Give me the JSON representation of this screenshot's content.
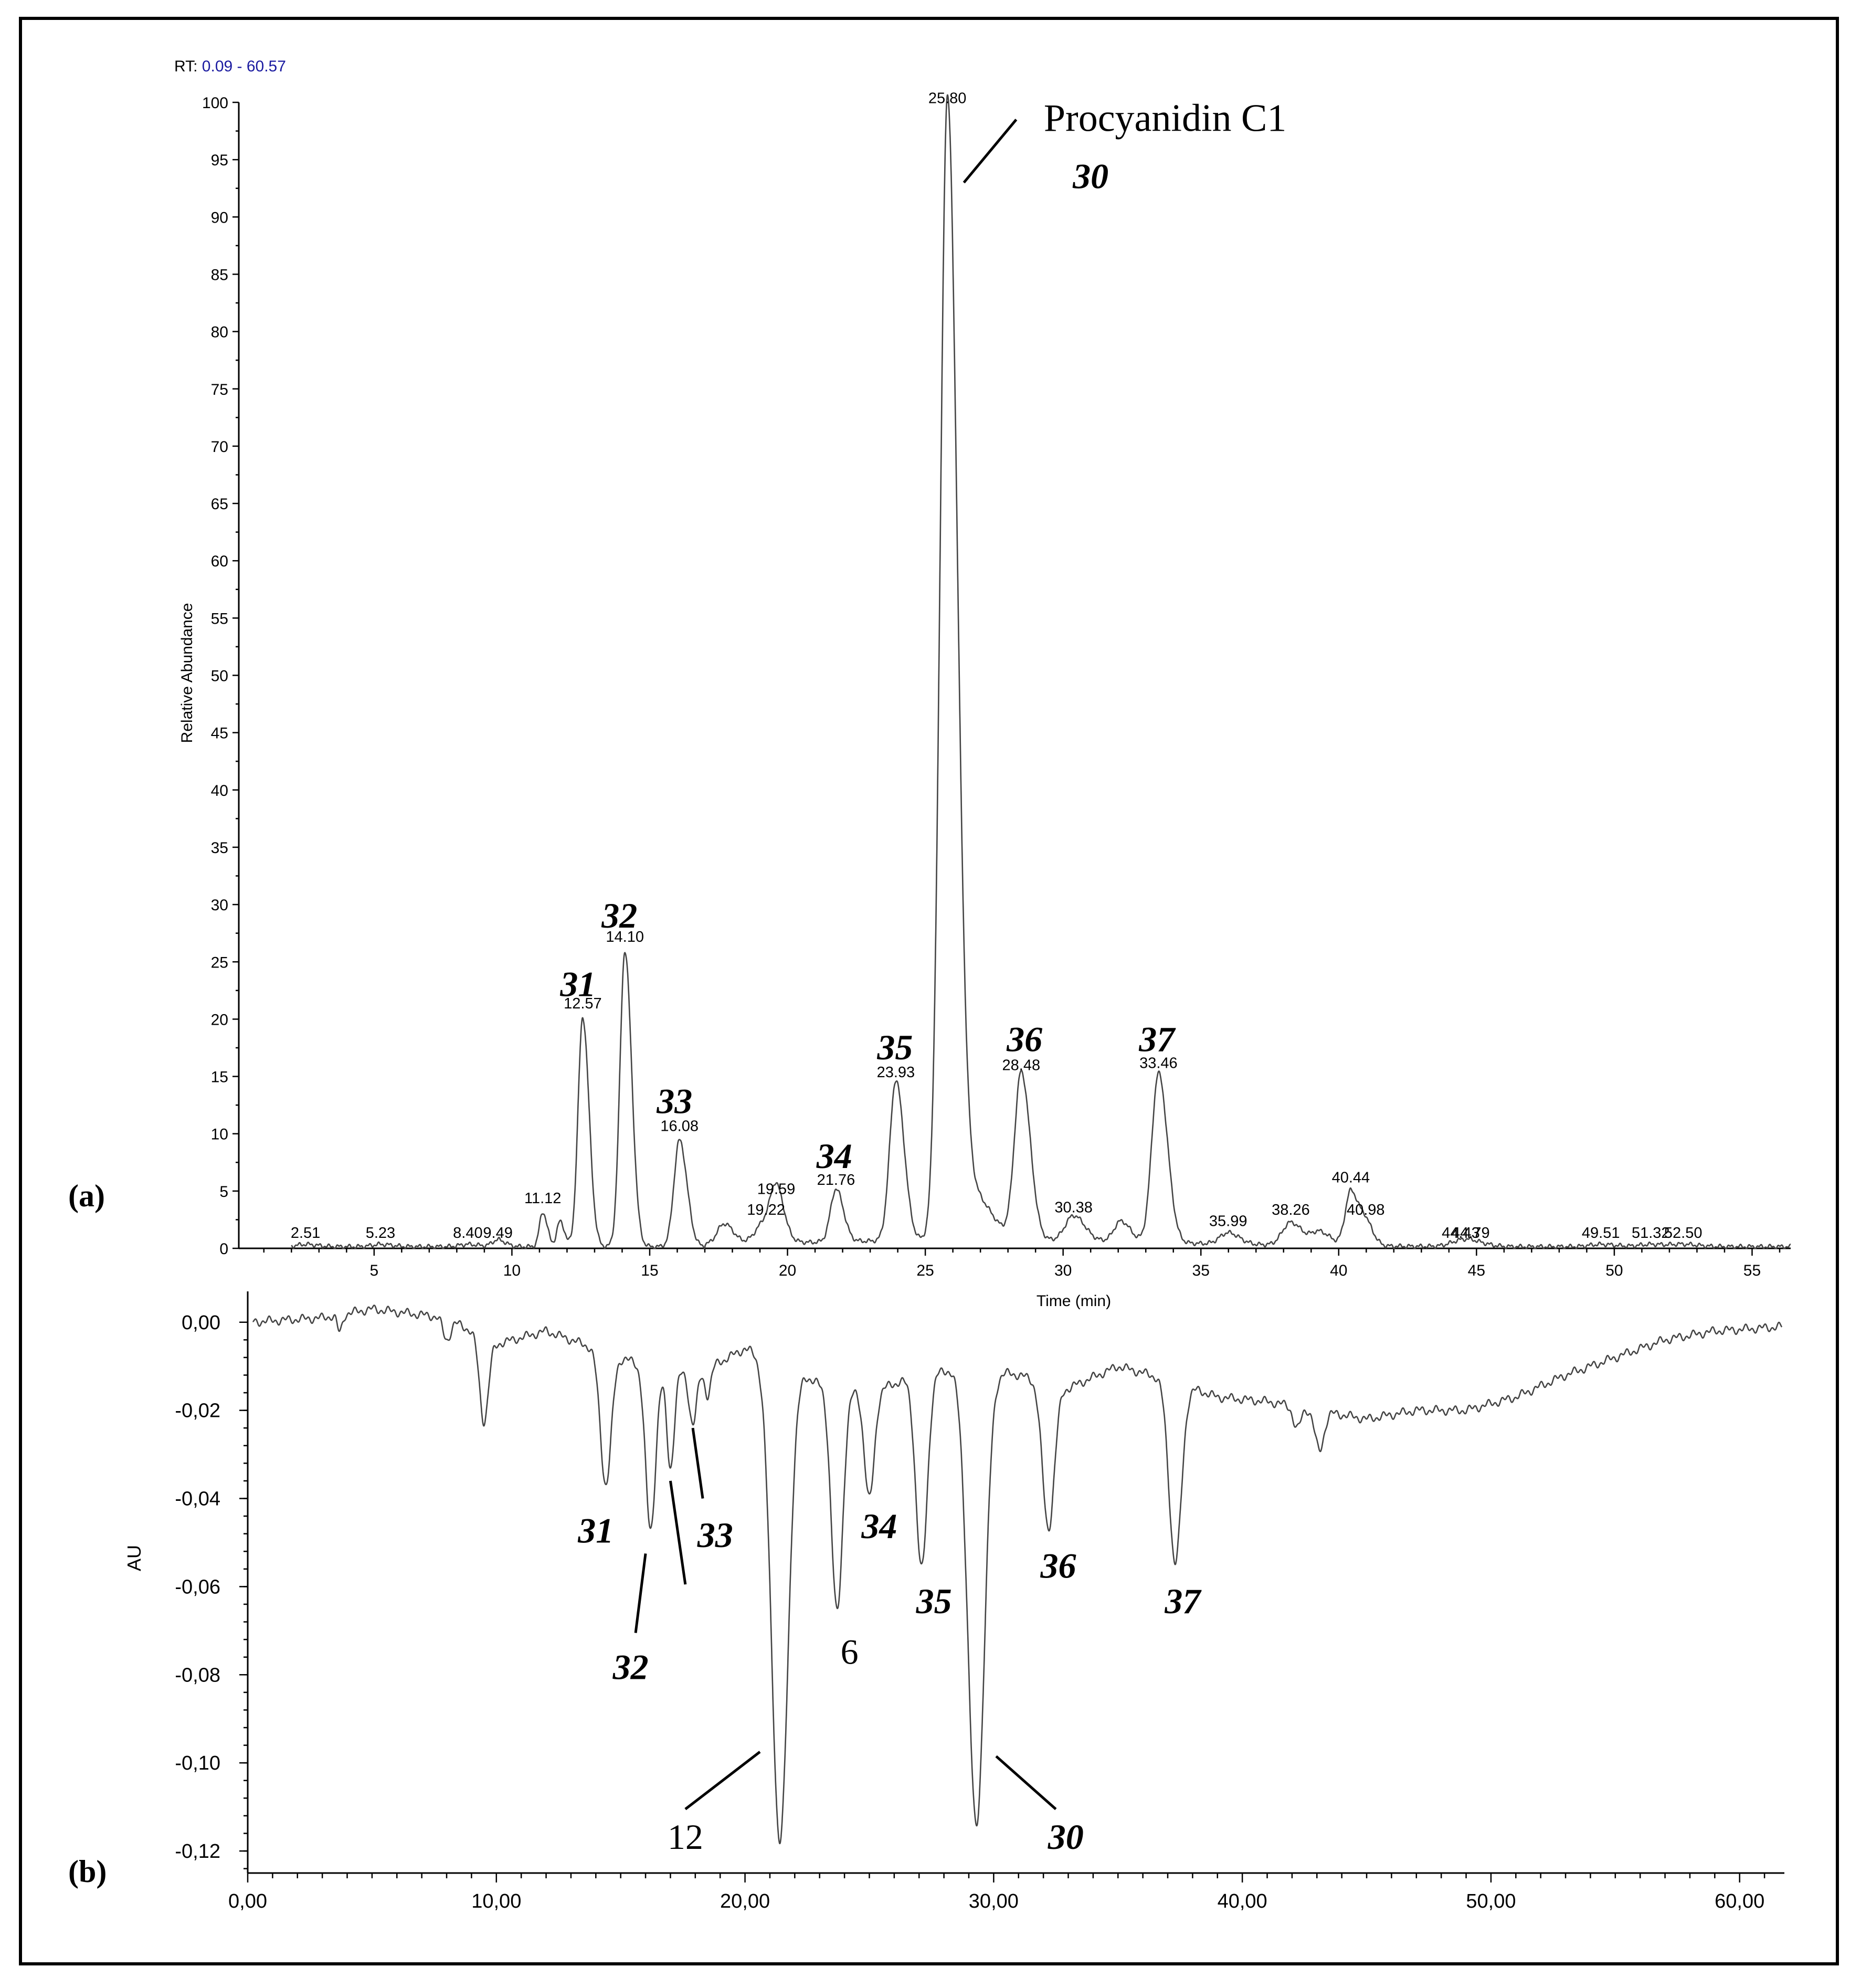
{
  "chart_data": [
    {
      "id": "a",
      "type": "line",
      "panel_label": "(a)",
      "range_label_prefix": "RT: ",
      "range_label_value": "0.09 - 60.57",
      "range_color": "#1a1aa0",
      "xlabel": "Time (min)",
      "ylabel": "Relative Abundance",
      "xlim": [
        0.09,
        56.4
      ],
      "ylim": [
        0,
        100
      ],
      "xticks": [
        5,
        10,
        15,
        20,
        25,
        30,
        35,
        40,
        45,
        50,
        55
      ],
      "yticks": [
        0,
        5,
        10,
        15,
        20,
        25,
        30,
        35,
        40,
        45,
        50,
        55,
        60,
        65,
        70,
        75,
        80,
        85,
        90,
        95,
        100
      ],
      "peaks": [
        {
          "rt": 2.51,
          "h": 0.2,
          "w": 0.3,
          "label": "2.51"
        },
        {
          "rt": 5.23,
          "h": 0.2,
          "w": 0.3,
          "label": "5.23"
        },
        {
          "rt": 8.4,
          "h": 0.2,
          "w": 0.3,
          "label": "8.40"
        },
        {
          "rt": 9.49,
          "h": 0.6,
          "w": 0.2,
          "label": "9.49"
        },
        {
          "rt": 11.12,
          "h": 3.0,
          "w": 0.12,
          "label": "11.12"
        },
        {
          "rt": 11.75,
          "h": 2.2,
          "w": 0.12
        },
        {
          "rt": 12.57,
          "h": 20.0,
          "w": 0.17,
          "label": "12.57"
        },
        {
          "rt": 14.1,
          "h": 25.8,
          "w": 0.18,
          "label": "14.10"
        },
        {
          "rt": 16.08,
          "h": 9.3,
          "w": 0.2,
          "label": "16.08"
        },
        {
          "rt": 17.7,
          "h": 1.8,
          "w": 0.25
        },
        {
          "rt": 19.22,
          "h": 2.0,
          "w": 0.35,
          "label": "19.22"
        },
        {
          "rt": 19.59,
          "h": 3.8,
          "w": 0.2,
          "label": "19.59"
        },
        {
          "rt": 21.76,
          "h": 4.6,
          "w": 0.2,
          "label": "21.76"
        },
        {
          "rt": 23.93,
          "h": 14.0,
          "w": 0.22,
          "label": "23.93"
        },
        {
          "rt": 25.8,
          "h": 99.0,
          "w": 0.26,
          "label": "25.80"
        },
        {
          "rt": 26.7,
          "h": 4.0,
          "w": 0.5
        },
        {
          "rt": 28.48,
          "h": 14.6,
          "w": 0.24,
          "label": "28.48"
        },
        {
          "rt": 30.38,
          "h": 2.2,
          "w": 0.3,
          "label": "30.38"
        },
        {
          "rt": 32.1,
          "h": 1.8,
          "w": 0.25
        },
        {
          "rt": 33.46,
          "h": 14.8,
          "w": 0.24,
          "label": "33.46"
        },
        {
          "rt": 35.99,
          "h": 1.0,
          "w": 0.3,
          "label": "35.99"
        },
        {
          "rt": 38.26,
          "h": 2.0,
          "w": 0.3,
          "label": "38.26"
        },
        {
          "rt": 39.3,
          "h": 1.2,
          "w": 0.3
        },
        {
          "rt": 40.44,
          "h": 4.8,
          "w": 0.2,
          "label": "40.44"
        },
        {
          "rt": 40.98,
          "h": 2.0,
          "w": 0.2,
          "label": "40.98"
        },
        {
          "rt": 44.43,
          "h": 0.4,
          "w": 0.4,
          "label": "44.43"
        },
        {
          "rt": 44.79,
          "h": 0.3,
          "w": 0.4,
          "label": "44.79"
        },
        {
          "rt": 49.51,
          "h": 0.2,
          "w": 0.4,
          "label": "49.51"
        },
        {
          "rt": 51.32,
          "h": 0.2,
          "w": 0.4,
          "label": "51.32"
        },
        {
          "rt": 52.5,
          "h": 0.2,
          "w": 0.4,
          "label": "52.50"
        }
      ],
      "annotations": [
        {
          "text": "Procyanidin C1",
          "x": 29.3,
          "y": 97.5,
          "style": "name"
        },
        {
          "text": "30",
          "x": 31.0,
          "y": 92.5,
          "style": "num"
        },
        {
          "text": "31",
          "x": 12.4,
          "y": 22.0,
          "style": "num"
        },
        {
          "text": "32",
          "x": 13.9,
          "y": 28.0,
          "style": "num"
        },
        {
          "text": "33",
          "x": 15.9,
          "y": 11.8,
          "style": "num"
        },
        {
          "text": "34",
          "x": 21.7,
          "y": 7.0,
          "style": "num"
        },
        {
          "text": "35",
          "x": 23.9,
          "y": 16.5,
          "style": "num"
        },
        {
          "text": "36",
          "x": 28.6,
          "y": 17.2,
          "style": "num"
        },
        {
          "text": "37",
          "x": 33.4,
          "y": 17.2,
          "style": "num"
        }
      ],
      "leader_lines": [
        {
          "x1": 26.4,
          "y1": 93.0,
          "x2": 28.3,
          "y2": 98.5
        }
      ]
    },
    {
      "id": "b",
      "type": "line",
      "panel_label": "(b)",
      "xlabel": "",
      "ylabel": "AU",
      "xlim": [
        0,
        61.8
      ],
      "ylim": [
        -0.125,
        0.007
      ],
      "xticks": [
        0,
        10,
        20,
        30,
        40,
        50,
        60
      ],
      "xtick_labels": [
        "0,00",
        "10,00",
        "20,00",
        "30,00",
        "40,00",
        "50,00",
        "60,00"
      ],
      "yticks": [
        0.0,
        -0.02,
        -0.04,
        -0.06,
        -0.08,
        -0.1,
        -0.12
      ],
      "ytick_labels": [
        "0,00",
        "-0,02",
        "-0,04",
        "-0,06",
        "-0,08",
        "-0,10",
        "-0,12"
      ],
      "baseline_points": [
        [
          0,
          0.0
        ],
        [
          3,
          0.001
        ],
        [
          5,
          0.003
        ],
        [
          8,
          0.001
        ],
        [
          10,
          -0.005
        ],
        [
          12,
          -0.002
        ],
        [
          14,
          -0.006
        ],
        [
          16,
          -0.01
        ],
        [
          18,
          -0.012
        ],
        [
          20,
          -0.006
        ],
        [
          21.5,
          -0.009
        ],
        [
          23,
          -0.014
        ],
        [
          25,
          -0.016
        ],
        [
          27,
          -0.012
        ],
        [
          29,
          -0.01
        ],
        [
          31,
          -0.012
        ],
        [
          33,
          -0.015
        ],
        [
          35,
          -0.01
        ],
        [
          37,
          -0.013
        ],
        [
          39,
          -0.017
        ],
        [
          41,
          -0.018
        ],
        [
          43,
          -0.02
        ],
        [
          45,
          -0.022
        ],
        [
          47,
          -0.02
        ],
        [
          49,
          -0.02
        ],
        [
          51,
          -0.017
        ],
        [
          53,
          -0.012
        ],
        [
          55,
          -0.008
        ],
        [
          57,
          -0.004
        ],
        [
          59,
          -0.002
        ],
        [
          61.8,
          -0.001
        ]
      ],
      "dips": [
        {
          "t": 3.7,
          "d": 0.004,
          "w": 0.1
        },
        {
          "t": 8.0,
          "d": 0.005,
          "w": 0.15
        },
        {
          "t": 9.5,
          "d": 0.019,
          "w": 0.18
        },
        {
          "t": 14.4,
          "d": 0.03,
          "w": 0.22
        },
        {
          "t": 16.2,
          "d": 0.037,
          "w": 0.2
        },
        {
          "t": 17.0,
          "d": 0.022,
          "w": 0.15
        },
        {
          "t": 17.9,
          "d": 0.011,
          "w": 0.15
        },
        {
          "t": 18.5,
          "d": 0.006,
          "w": 0.12
        },
        {
          "t": 21.4,
          "d": 0.109,
          "w": 0.33
        },
        {
          "t": 23.7,
          "d": 0.051,
          "w": 0.23
        },
        {
          "t": 25.0,
          "d": 0.024,
          "w": 0.2
        },
        {
          "t": 27.1,
          "d": 0.044,
          "w": 0.23
        },
        {
          "t": 29.3,
          "d": 0.104,
          "w": 0.33
        },
        {
          "t": 32.2,
          "d": 0.033,
          "w": 0.24
        },
        {
          "t": 37.3,
          "d": 0.041,
          "w": 0.25
        },
        {
          "t": 42.2,
          "d": 0.005,
          "w": 0.15
        },
        {
          "t": 43.1,
          "d": 0.009,
          "w": 0.18
        }
      ],
      "annotations": [
        {
          "text": "31",
          "x": 14.0,
          "y": -0.05,
          "style": "num"
        },
        {
          "text": "32",
          "x": 15.4,
          "y": -0.081,
          "style": "num"
        },
        {
          "text": "33",
          "x": 18.8,
          "y": -0.051,
          "style": "num"
        },
        {
          "text": "34",
          "x": 25.4,
          "y": -0.049,
          "style": "num"
        },
        {
          "text": "6",
          "x": 24.2,
          "y": -0.0775,
          "style": "num-upright"
        },
        {
          "text": "35",
          "x": 27.6,
          "y": -0.066,
          "style": "num"
        },
        {
          "text": "36",
          "x": 32.6,
          "y": -0.058,
          "style": "num"
        },
        {
          "text": "37",
          "x": 37.6,
          "y": -0.066,
          "style": "num"
        },
        {
          "text": "12",
          "x": 17.6,
          "y": -0.1195,
          "style": "num-upright"
        },
        {
          "text": "30",
          "x": 32.9,
          "y": -0.1195,
          "style": "num"
        }
      ],
      "leader_lines": [
        {
          "x1": 16.0,
          "y1": -0.0525,
          "x2": 15.6,
          "y2": -0.0705
        },
        {
          "x1": 17.0,
          "y1": -0.036,
          "x2": 17.6,
          "y2": -0.0595
        },
        {
          "x1": 17.9,
          "y1": -0.024,
          "x2": 18.3,
          "y2": -0.04
        },
        {
          "x1": 20.6,
          "y1": -0.0975,
          "x2": 17.6,
          "y2": -0.1105
        },
        {
          "x1": 30.1,
          "y1": -0.0985,
          "x2": 32.5,
          "y2": -0.1105
        }
      ]
    }
  ]
}
